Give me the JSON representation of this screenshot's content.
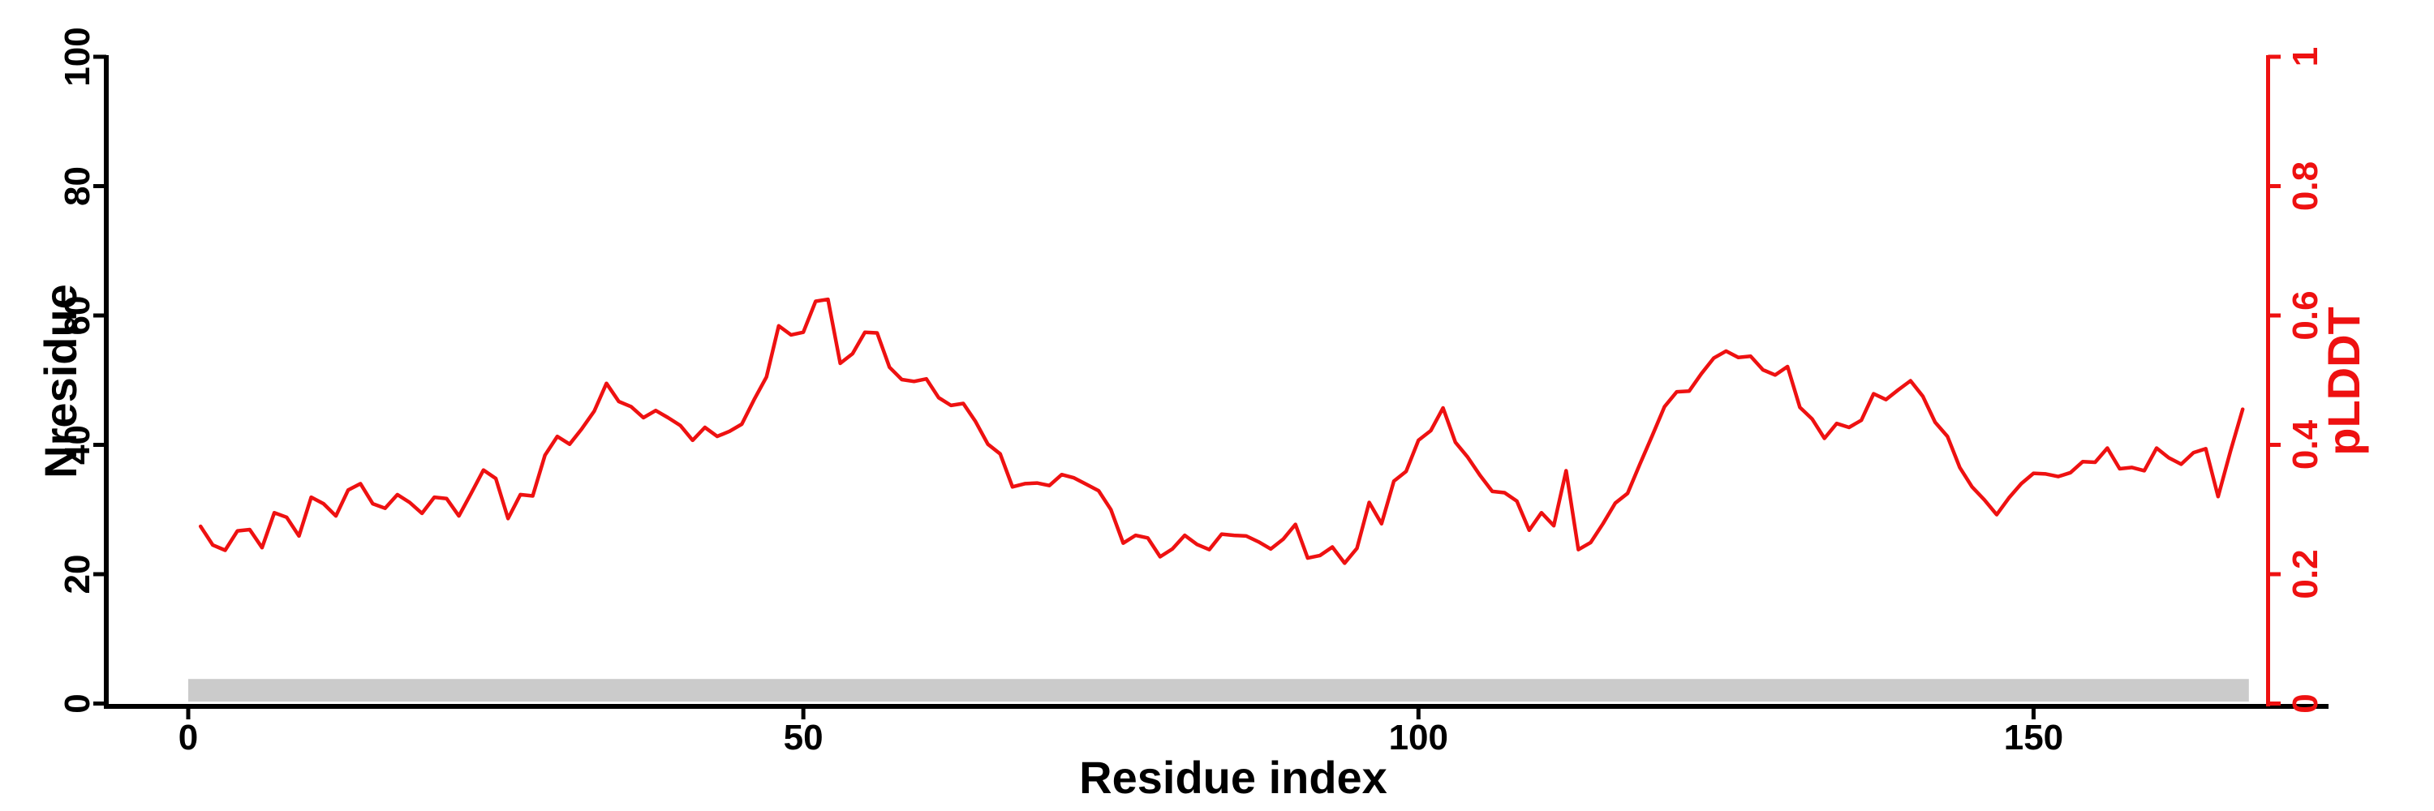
{
  "chart_data": {
    "type": "line",
    "title": "",
    "xlabel": "Residue index",
    "ylabel_left": "Nresidue",
    "ylabel_right": "pLDDT",
    "x_ticks": [
      0,
      50,
      100,
      150
    ],
    "y_left_ticks": [
      0,
      20,
      40,
      60,
      80,
      100
    ],
    "y_right_ticks": [
      0,
      0.2,
      0.4,
      0.6,
      0.8,
      1
    ],
    "y_left_range": [
      0,
      100
    ],
    "y_right_range": [
      0,
      1
    ],
    "x_range_shown": [
      0,
      167
    ],
    "grid": false,
    "legend": "none",
    "series": [
      {
        "name": "pLDDT",
        "axis": "right",
        "color": "#ee1111",
        "x_start": 1,
        "x_step": 1,
        "values": [
          0.274,
          0.245,
          0.237,
          0.267,
          0.269,
          0.241,
          0.295,
          0.288,
          0.259,
          0.319,
          0.309,
          0.29,
          0.33,
          0.34,
          0.309,
          0.302,
          0.323,
          0.311,
          0.294,
          0.319,
          0.317,
          0.29,
          0.325,
          0.361,
          0.348,
          0.286,
          0.323,
          0.321,
          0.384,
          0.413,
          0.401,
          0.425,
          0.452,
          0.495,
          0.467,
          0.459,
          0.442,
          0.453,
          0.442,
          0.43,
          0.407,
          0.427,
          0.413,
          0.421,
          0.432,
          0.47,
          0.505,
          0.584,
          0.57,
          0.574,
          0.622,
          0.625,
          0.526,
          0.541,
          0.574,
          0.573,
          0.52,
          0.501,
          0.498,
          0.502,
          0.473,
          0.461,
          0.464,
          0.436,
          0.401,
          0.386,
          0.335,
          0.34,
          0.341,
          0.337,
          0.354,
          0.349,
          0.339,
          0.329,
          0.3,
          0.248,
          0.26,
          0.256,
          0.227,
          0.239,
          0.26,
          0.246,
          0.238,
          0.262,
          0.26,
          0.259,
          0.25,
          0.239,
          0.254,
          0.277,
          0.225,
          0.229,
          0.242,
          0.217,
          0.24,
          0.311,
          0.278,
          0.344,
          0.359,
          0.407,
          0.422,
          0.457,
          0.404,
          0.381,
          0.353,
          0.328,
          0.326,
          0.313,
          0.268,
          0.295,
          0.275,
          0.36,
          0.238,
          0.249,
          0.278,
          0.31,
          0.325,
          0.37,
          0.414,
          0.459,
          0.482,
          0.483,
          0.51,
          0.534,
          0.545,
          0.535,
          0.537,
          0.516,
          0.508,
          0.521,
          0.458,
          0.44,
          0.41,
          0.433,
          0.427,
          0.438,
          0.479,
          0.47,
          0.485,
          0.499,
          0.475,
          0.435,
          0.413,
          0.365,
          0.335,
          0.315,
          0.292,
          0.318,
          0.34,
          0.356,
          0.355,
          0.351,
          0.357,
          0.374,
          0.373,
          0.395,
          0.363,
          0.365,
          0.36,
          0.395,
          0.38,
          0.37,
          0.388,
          0.394,
          0.32,
          0.39,
          0.455
        ]
      }
    ],
    "annotation_bar": {
      "description": "gray residue-range bar along the x axis",
      "color": "#cbcbcb",
      "x_range": [
        0,
        167.5
      ],
      "y_bottom_left_axis_units": 0.3,
      "height_in_left_axis_units": 3.5
    },
    "colors": {
      "left_axis": "#000000",
      "bottom_axis": "#000000",
      "right_axis": "#ee1111",
      "background": "#ffffff"
    }
  }
}
